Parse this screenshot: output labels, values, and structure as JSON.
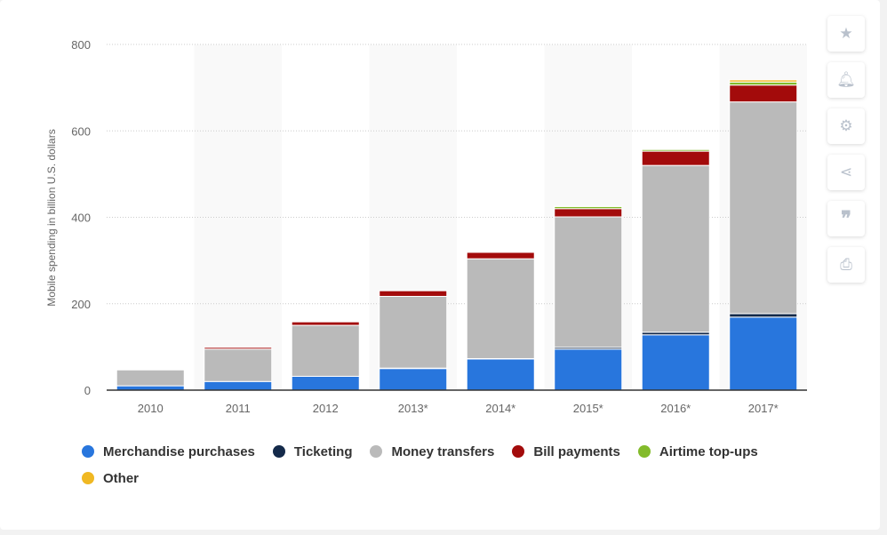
{
  "chart_data": {
    "type": "bar",
    "stacked": true,
    "categories": [
      "2010",
      "2011",
      "2012",
      "2013*",
      "2014*",
      "2015*",
      "2016*",
      "2017*"
    ],
    "ylabel": "Mobile spending in billion U.S. dollars",
    "xlabel": "",
    "ylim": [
      0,
      800
    ],
    "yticks": [
      0,
      200,
      400,
      600,
      800
    ],
    "grid": true,
    "legend_position": "bottom",
    "series": [
      {
        "name": "Merchandise purchases",
        "color": "#2876dd",
        "values": [
          10,
          20,
          32,
          50,
          72,
          95,
          128,
          169
        ]
      },
      {
        "name": "Ticketing",
        "color": "#142a4a",
        "values": [
          0,
          0,
          0,
          1,
          1,
          4,
          6,
          8
        ]
      },
      {
        "name": "Money transfers",
        "color": "#bababa",
        "values": [
          37,
          75,
          118,
          166,
          231,
          302,
          386,
          490
        ]
      },
      {
        "name": "Bill payments",
        "color": "#a30b0b",
        "values": [
          1,
          4,
          8,
          13,
          15,
          19,
          33,
          39
        ]
      },
      {
        "name": "Airtime top-ups",
        "color": "#83bb2b",
        "values": [
          0,
          0,
          0,
          0,
          1,
          5,
          4,
          7
        ]
      },
      {
        "name": "Other",
        "color": "#f0b823",
        "values": [
          0,
          0,
          0,
          0,
          0,
          1,
          1,
          5
        ]
      }
    ]
  },
  "toolbar": [
    "star-icon",
    "bell-icon",
    "gear-icon",
    "share-icon",
    "quote-icon",
    "print-icon"
  ]
}
